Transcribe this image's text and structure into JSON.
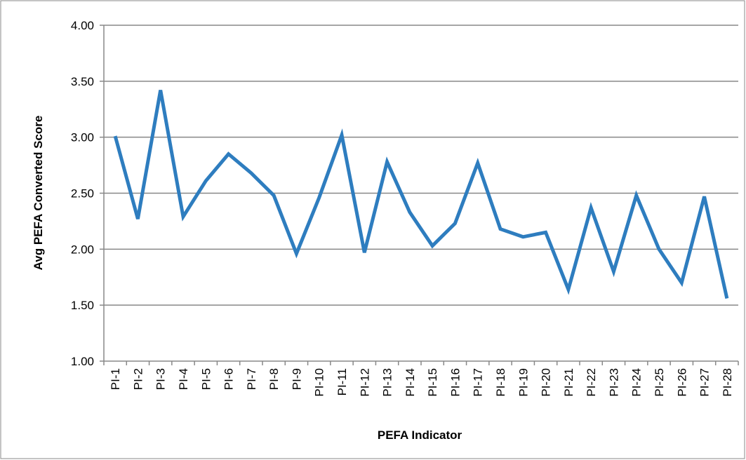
{
  "chart_data": {
    "type": "line",
    "x_label": "PEFA Indicator",
    "y_label": "Avg PEFA Converted Score",
    "categories": [
      "PI-1",
      "PI-2",
      "PI-3",
      "PI-4",
      "PI-5",
      "PI-6",
      "PI-7",
      "PI-8",
      "PI-9",
      "PI-10",
      "PI-11",
      "PI-12",
      "PI-13",
      "PI-14",
      "PI-15",
      "PI-16",
      "PI-17",
      "PI-18",
      "PI-19",
      "PI-20",
      "PI-21",
      "PI-22",
      "PI-23",
      "PI-24",
      "PI-25",
      "PI-26",
      "PI-27",
      "PI-28"
    ],
    "values": [
      3.01,
      2.27,
      3.42,
      2.29,
      2.61,
      2.85,
      2.68,
      2.48,
      1.96,
      2.46,
      3.02,
      1.97,
      2.78,
      2.33,
      2.03,
      2.23,
      2.77,
      2.18,
      2.11,
      2.15,
      1.64,
      2.37,
      1.8,
      2.48,
      2.0,
      1.7,
      2.47,
      1.56
    ],
    "color": "#2e7dbf",
    "ylim": [
      1,
      4
    ],
    "yticks": [
      {
        "value": 1,
        "label": "1.00"
      },
      {
        "value": 1.5,
        "label": "1.50"
      },
      {
        "value": 2,
        "label": "2.00"
      },
      {
        "value": 2.5,
        "label": "2.50"
      },
      {
        "value": 3,
        "label": "3.00"
      },
      {
        "value": 3.5,
        "label": "3.50"
      },
      {
        "value": 4,
        "label": "4.00"
      }
    ],
    "grid": true
  }
}
